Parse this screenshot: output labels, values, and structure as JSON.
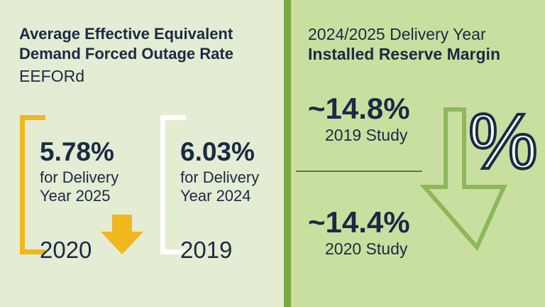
{
  "left": {
    "title_line1": "Average Effective Equivalent",
    "title_line2": "Demand Forced Outage Rate",
    "subtitle": "EEFORd",
    "current": {
      "value": "5.78%",
      "line1": "for Delivery",
      "line2": "Year 2025",
      "year": "2020"
    },
    "previous": {
      "value": "6.03%",
      "line1": "for Delivery",
      "line2": "Year 2024",
      "year": "2019"
    }
  },
  "right": {
    "title_line1": "2024/2025 Delivery Year",
    "title_line2": "Installed Reserve Margin",
    "study_2019": {
      "value": "~14.8%",
      "label": "2019 Study"
    },
    "study_2020": {
      "value": "~14.4%",
      "label": "2020 Study"
    },
    "percent_symbol": "%"
  },
  "colors": {
    "left_bg": "#e4ecd3",
    "right_bg": "#c9dfa0",
    "divider": "#7aa842",
    "yellow": "#f0b71f",
    "navy": "#1b2a44",
    "arrow_green": "#8cb85a"
  }
}
